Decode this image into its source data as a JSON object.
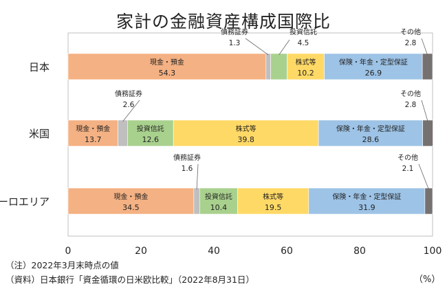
{
  "title": "家計の金融資産構成国際比",
  "notes": [
    "（注）2022年3月末時点の値",
    "（資料）日本銀行「資金循環の日米欧比較」（2022年8月31日）"
  ],
  "unit_label": "（%）",
  "colors": {
    "現金・預金": "#f4b183",
    "債務証券": "#bfbfbf",
    "投資信託": "#a9d18e",
    "株式等": "#ffd966",
    "保険・年金・定型保証": "#9dc3e6",
    "その他": "#767171"
  },
  "chart_data": {
    "type": "bar",
    "orientation": "horizontal",
    "stacked": true,
    "title": "家計の金融資産構成国際比",
    "categories": [
      "日本",
      "米国",
      "ユーロエリア"
    ],
    "series": [
      {
        "name": "現金・預金",
        "values": [
          54.3,
          13.7,
          34.5
        ]
      },
      {
        "name": "債務証券",
        "values": [
          1.3,
          2.6,
          1.6
        ]
      },
      {
        "name": "投資信託",
        "values": [
          4.5,
          12.6,
          10.4
        ]
      },
      {
        "name": "株式等",
        "values": [
          10.2,
          39.8,
          19.5
        ]
      },
      {
        "name": "保険・年金・定型保証",
        "values": [
          26.9,
          28.6,
          31.9
        ]
      },
      {
        "name": "その他",
        "values": [
          2.8,
          2.8,
          2.1
        ]
      }
    ],
    "xlim": [
      0,
      100
    ],
    "xticks": [
      0,
      20,
      40,
      60,
      80,
      100
    ],
    "grid": false,
    "legend": "none"
  }
}
